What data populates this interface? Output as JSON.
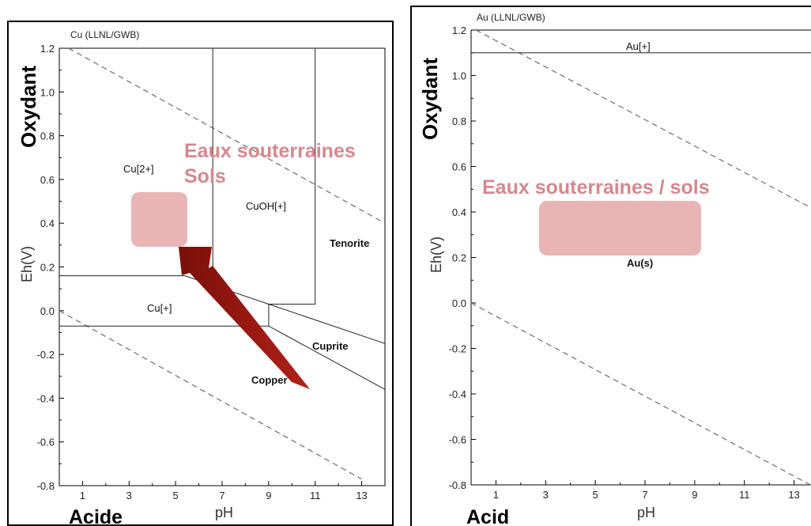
{
  "chart_data": [
    {
      "type": "line",
      "title": "Cu (LLNL/GWB)",
      "xlabel": "pH",
      "ylabel": "Eh(V)",
      "xlim": [
        0,
        14
      ],
      "ylim": [
        -0.8,
        1.2
      ],
      "xticks": [
        1,
        3,
        5,
        7,
        9,
        11,
        13
      ],
      "yticks": [
        1.2,
        1.0,
        0.8,
        0.6,
        0.4,
        0.2,
        0.0,
        -0.2,
        -0.4,
        -0.6,
        -0.8
      ],
      "water_stability_lines": [
        {
          "name": "upper",
          "points": [
            [
              0.4,
              1.2
            ],
            [
              14,
              0.4
            ]
          ]
        },
        {
          "name": "lower",
          "points": [
            [
              0,
              0.0
            ],
            [
              13,
              -0.77
            ]
          ]
        }
      ],
      "boundaries": [
        [
          [
            0,
            0.16
          ],
          [
            5.4,
            0.16
          ],
          [
            9,
            0.03
          ],
          [
            9,
            -0.07
          ]
        ],
        [
          [
            0,
            -0.07
          ],
          [
            9,
            -0.07
          ],
          [
            14,
            -0.36
          ]
        ],
        [
          [
            9,
            0.03
          ],
          [
            14,
            -0.15
          ]
        ],
        [
          [
            6.6,
            1.2
          ],
          [
            6.6,
            0.17
          ]
        ],
        [
          [
            9,
            0.03
          ],
          [
            11,
            0.03
          ],
          [
            11,
            1.2
          ]
        ]
      ],
      "region_labels": [
        "Cu[2+]",
        "CuOH[+]",
        "Tenorite",
        "Cu[+]",
        "Cuprite",
        "Copper"
      ],
      "highlight": {
        "label_line1": "Eaux souterraines",
        "label_line2": "Sols",
        "ph": [
          3.1,
          5.4
        ],
        "eh": [
          0.3,
          0.54
        ],
        "color": "#e8b4b4",
        "text_color": "#d4888e"
      },
      "arrow_color": "#9b1a12",
      "annotations": {
        "top": "Oxydant",
        "bottom": "Acide"
      }
    },
    {
      "type": "line",
      "title": "Au (LLNL/GWB)",
      "xlabel": "pH",
      "ylabel": "Eh(V)",
      "xlim": [
        0,
        14
      ],
      "ylim": [
        -0.8,
        1.2
      ],
      "xticks": [
        1,
        3,
        5,
        7,
        9,
        11,
        13
      ],
      "yticks": [
        1.2,
        1.0,
        0.8,
        0.6,
        0.4,
        0.2,
        0.0,
        -0.2,
        -0.4,
        -0.6,
        -0.8
      ],
      "water_stability_lines": [
        {
          "name": "upper",
          "points": [
            [
              0.2,
              1.2
            ],
            [
              14,
              0.4
            ]
          ]
        },
        {
          "name": "lower",
          "points": [
            [
              0,
              0.0
            ],
            [
              14,
              -0.82
            ]
          ]
        }
      ],
      "boundaries": [
        [
          [
            0,
            1.1
          ],
          [
            14,
            1.1
          ]
        ]
      ],
      "region_labels": [
        "Au[+]",
        "Au(s)"
      ],
      "highlight": {
        "label": "Eaux souterraines / sols",
        "ph": [
          2.9,
          9.6
        ],
        "eh": [
          0.22,
          0.46
        ],
        "color": "#e8b4b4",
        "text_color": "#d4888e"
      },
      "annotations": {
        "top": "Oxydant",
        "bottom": "Acid"
      }
    }
  ]
}
